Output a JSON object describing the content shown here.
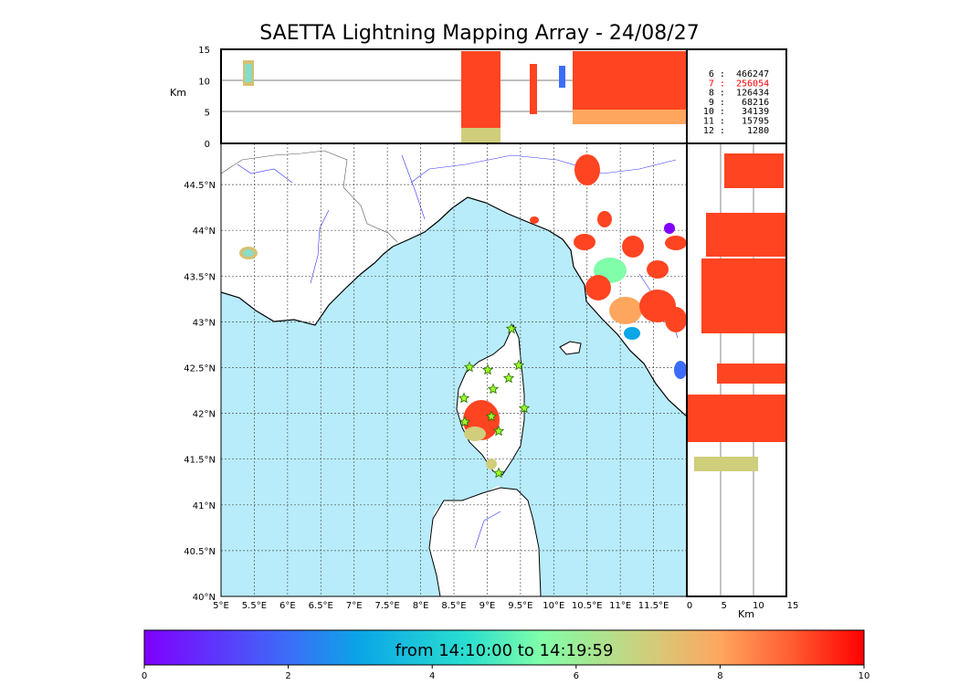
{
  "title": "SAETTA Lightning Mapping Array - 24/08/27",
  "map": {
    "lon_ticks": [
      "5°E",
      "5.5°E",
      "6°E",
      "6.5°E",
      "7°E",
      "7.5°E",
      "8°E",
      "8.5°E",
      "9°E",
      "9.5°E",
      "10°E",
      "10.5°E",
      "11°E",
      "11.5°E"
    ],
    "lat_ticks": [
      "40°N",
      "40.5°N",
      "41°N",
      "41.5°N",
      "42°N",
      "42.5°N",
      "43°N",
      "43.5°N",
      "44°N",
      "44.5°N"
    ],
    "sea_color": "#b8ecfb",
    "flash_color": "#ff4422"
  },
  "altitude_panel": {
    "axis_label": "Km",
    "ticks": [
      "0",
      "5",
      "10",
      "15"
    ]
  },
  "side_panel": {
    "axis_label": "Km",
    "ticks": [
      "0",
      "5",
      "10",
      "15"
    ]
  },
  "station_counts": [
    {
      "station": "6",
      "count": "466247",
      "color": "#000000"
    },
    {
      "station": "7",
      "count": "256054",
      "color": "#ff0000"
    },
    {
      "station": "8",
      "count": "126434",
      "color": "#000000"
    },
    {
      "station": "9",
      "count": "68216",
      "color": "#000000"
    },
    {
      "station": "10",
      "count": "34139",
      "color": "#000000"
    },
    {
      "station": "11",
      "count": "15795",
      "color": "#000000"
    },
    {
      "station": "12",
      "count": "1280",
      "color": "#000000"
    }
  ],
  "colorbar": {
    "label": "from 14:10:00 to 14:19:59",
    "ticks": [
      "0",
      "2",
      "4",
      "6",
      "8",
      "10"
    ]
  }
}
